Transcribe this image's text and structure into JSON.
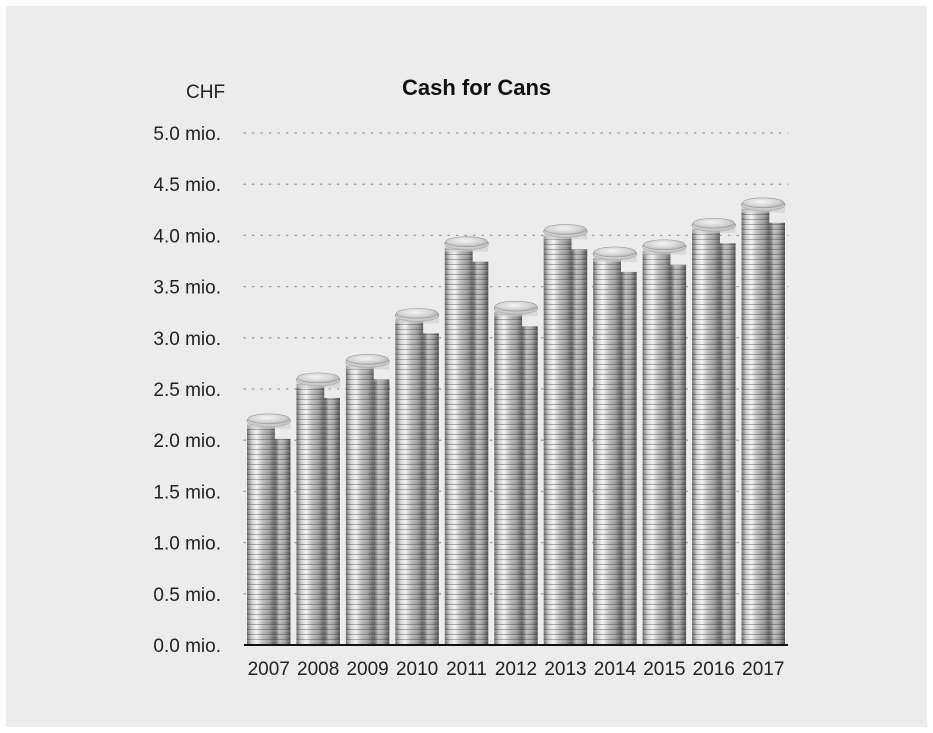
{
  "chart_data": {
    "type": "bar",
    "title": "Cash for Cans",
    "unit_label": "CHF",
    "xlabel": "",
    "ylabel": "",
    "categories": [
      "2007",
      "2008",
      "2009",
      "2010",
      "2011",
      "2012",
      "2013",
      "2014",
      "2015",
      "2016",
      "2017"
    ],
    "values": [
      2.15,
      2.55,
      2.73,
      3.18,
      3.88,
      3.25,
      4.0,
      3.78,
      3.85,
      4.06,
      4.26
    ],
    "ylim": [
      0,
      5
    ],
    "yticks": [
      0,
      0.5,
      1.0,
      1.5,
      2.0,
      2.5,
      3.0,
      3.5,
      4.0,
      4.5,
      5.0
    ],
    "ytick_labels": [
      "0.0 mio.",
      "0.5 mio.",
      "1.0 mio.",
      "1.5 mio.",
      "2.0 mio.",
      "2.5 mio.",
      "3.0 mio.",
      "3.5 mio.",
      "4.0 mio.",
      "4.5 mio.",
      "5.0 mio."
    ],
    "grid": true,
    "legend": "none",
    "colors": {
      "background": "#ececec",
      "grid": "#9a9a9a",
      "coin_light": "#e4e4e4",
      "coin_mid": "#a8a8a8",
      "coin_dark": "#555555"
    }
  }
}
